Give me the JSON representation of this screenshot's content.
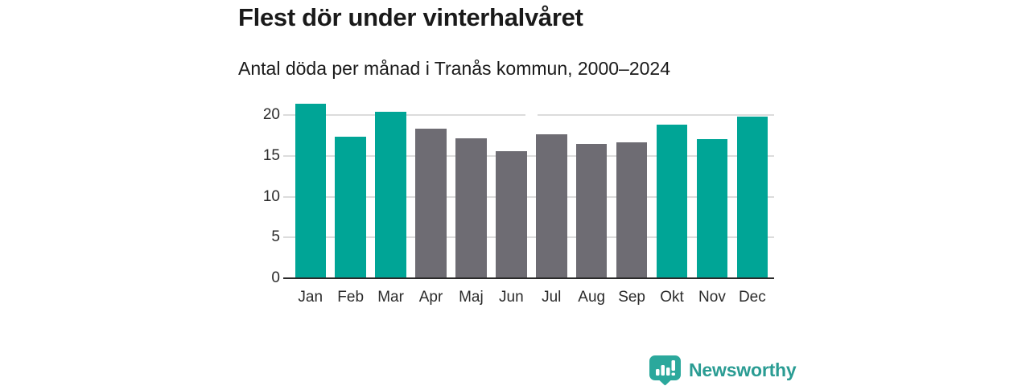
{
  "title": "Flest dör under vinterhalvåret",
  "subtitle": "Antal döda per månad i Tranås kommun, 2000–2024",
  "colors": {
    "winter": "#00a596",
    "summer": "#6e6c73",
    "grid": "#dcdcdc",
    "axis": "#2a2a2a",
    "logo": "#2ba89c",
    "brand_text": "#2a9c93"
  },
  "chart_data": {
    "type": "bar",
    "title": "Flest dör under vinterhalvåret",
    "subtitle": "Antal döda per månad i Tranås kommun, 2000–2024",
    "categories": [
      "Jan",
      "Feb",
      "Mar",
      "Apr",
      "Maj",
      "Jun",
      "Jul",
      "Aug",
      "Sep",
      "Okt",
      "Nov",
      "Dec"
    ],
    "values": [
      21.4,
      17.4,
      20.4,
      18.4,
      17.2,
      15.6,
      17.7,
      16.5,
      16.7,
      18.9,
      17.1,
      19.8
    ],
    "bar_roles": [
      "winter",
      "winter",
      "winter",
      "summer",
      "summer",
      "summer",
      "summer",
      "summer",
      "summer",
      "winter",
      "winter",
      "winter"
    ],
    "xlabel": "",
    "ylabel": "",
    "ylim": [
      0,
      22
    ],
    "yticks": [
      0,
      5,
      10,
      15,
      20
    ],
    "grid": "horizontal",
    "legend": "none"
  },
  "footer": {
    "brand": "Newsworthy"
  }
}
